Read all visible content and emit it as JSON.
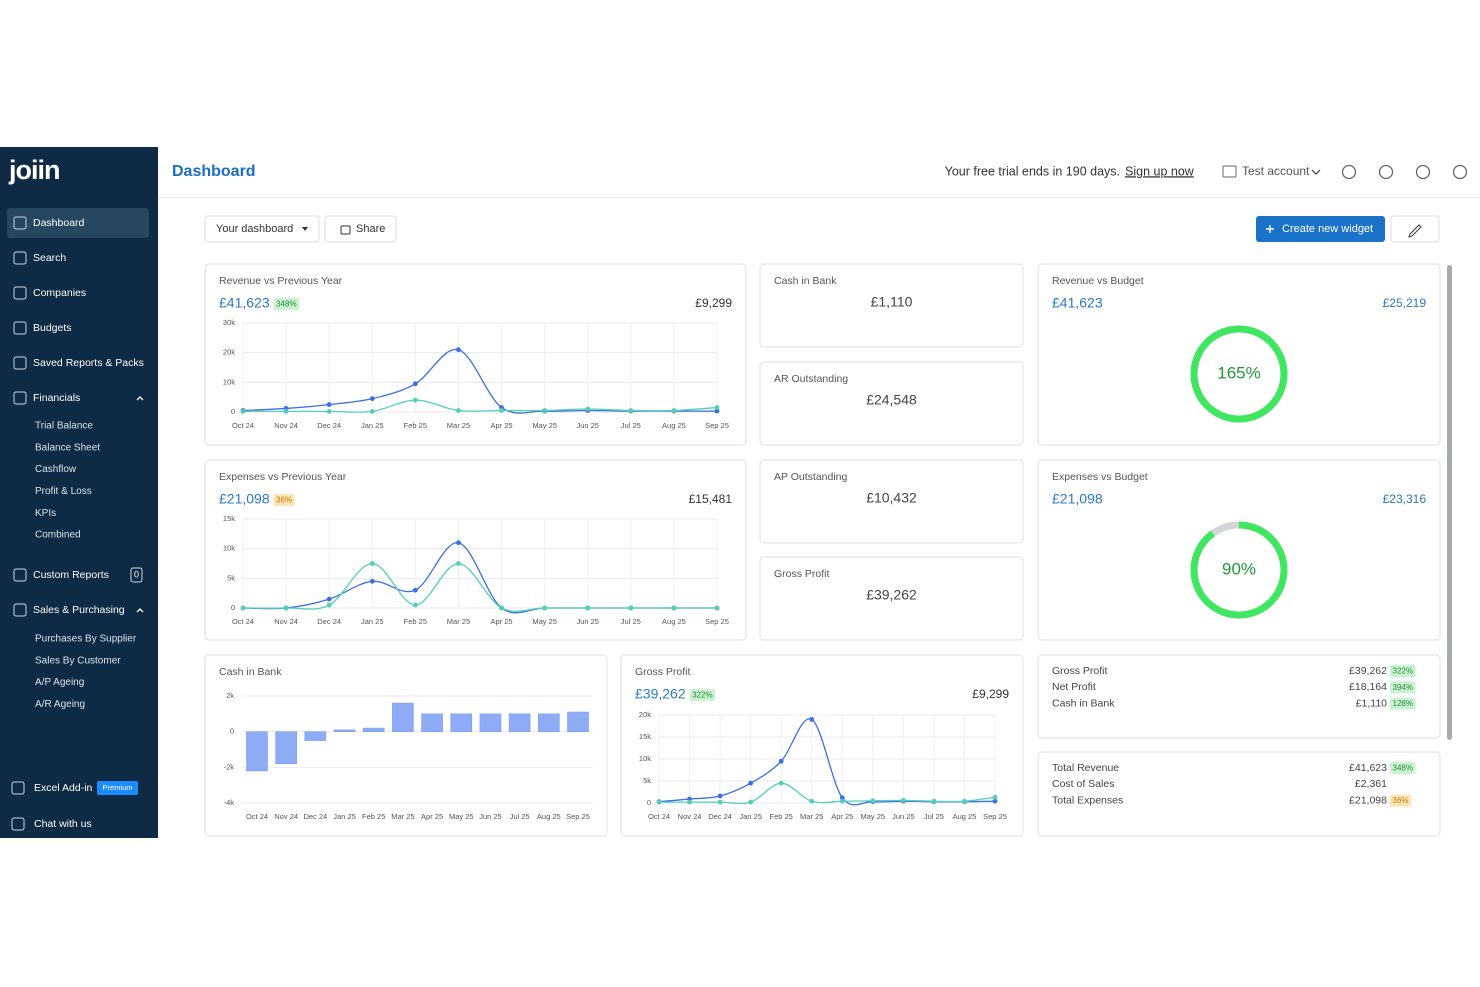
{
  "sidebar": {
    "logo": "joiin",
    "items": [
      {
        "label": "Dashboard"
      },
      {
        "label": "Search"
      },
      {
        "label": "Companies"
      },
      {
        "label": "Budgets"
      },
      {
        "label": "Saved Reports & Packs"
      },
      {
        "label": "Financials",
        "children": [
          "Trial Balance",
          "Balance Sheet",
          "Cashflow",
          "Profit & Loss",
          "KPIs",
          "Combined"
        ]
      },
      {
        "label": "Custom Reports",
        "badge": "0"
      },
      {
        "label": "Sales & Purchasing",
        "children": [
          "Purchases By Supplier",
          "Sales By Customer",
          "A/P Ageing",
          "A/R Ageing"
        ]
      }
    ],
    "footer": [
      {
        "label": "Excel Add-in",
        "badge": "Premium"
      },
      {
        "label": "Chat with us"
      }
    ]
  },
  "header": {
    "title": "Dashboard",
    "trial": "Your free trial ends in 190 days.",
    "link": "Sign up now",
    "account": "Test account"
  },
  "toolbar": {
    "dashboard": "Your dashboard",
    "share": "Share",
    "create": "Create new widget"
  },
  "widgets": {
    "revenue_vs_previous": {
      "title": "Revenue vs Previous Year",
      "value": "£41,623",
      "badge": {
        "text": "348%",
        "bg": "#c9f2d0",
        "fg": "#2a8a43"
      },
      "previous": "£9,299",
      "chart": {
        "type": "line",
        "categories": [
          "Oct 24",
          "Nov 24",
          "Dec 24",
          "Jan 25",
          "Feb 25",
          "Mar 25",
          "Apr 25",
          "May 25",
          "Jun 25",
          "Jul 25",
          "Aug 25",
          "Sep 25"
        ],
        "ylim": [
          0,
          30000
        ],
        "yticks": [
          0,
          {
            "value": 10000,
            "label": "10k"
          },
          {
            "value": 20000,
            "label": "20k"
          },
          {
            "value": 30000,
            "label": "30k"
          }
        ],
        "grid": true,
        "series": [
          {
            "color": "#3b6ee6",
            "values": [
              500,
              1200,
              2500,
              4500,
              9500,
              21000,
              1500,
              300,
              500,
              300,
              300,
              300
            ]
          },
          {
            "color": "#52cfb4",
            "values": [
              200,
              200,
              200,
              200,
              4000,
              500,
              500,
              500,
              1000,
              500,
              500,
              1500
            ]
          }
        ]
      }
    },
    "cash_in_bank": {
      "title": "Cash in Bank",
      "value": "£1,110"
    },
    "ar_outstanding": {
      "title": "AR Outstanding",
      "value": "£24,548"
    },
    "revenue_vs_budget": {
      "title": "Revenue vs Budget",
      "actual": "£41,623",
      "budget": "£25,219",
      "gauge": {
        "value": 165,
        "label": "165%",
        "color": "#3fe660",
        "track": "#d2d6db"
      }
    },
    "expenses_vs_previous": {
      "title": "Expenses vs Previous Year",
      "value": "£21,098",
      "badge": {
        "text": "36%",
        "bg": "#fde4b6",
        "fg": "#c67a00"
      },
      "previous": "£15,481",
      "chart": {
        "type": "line",
        "categories": [
          "Oct 24",
          "Nov 24",
          "Dec 24",
          "Jan 25",
          "Feb 25",
          "Mar 25",
          "Apr 25",
          "May 25",
          "Jun 25",
          "Jul 25",
          "Aug 25",
          "Sep 25"
        ],
        "ylim": [
          0,
          15000
        ],
        "yticks": [
          0,
          {
            "value": 5000,
            "label": "5k"
          },
          {
            "value": 10000,
            "label": "10k"
          },
          {
            "value": 15000,
            "label": "15k"
          }
        ],
        "grid": true,
        "series": [
          {
            "color": "#3b6ee6",
            "values": [
              0,
              0,
              1500,
              4500,
              3000,
              11000,
              0,
              0,
              0,
              0,
              0,
              0
            ]
          },
          {
            "color": "#52cfb4",
            "values": [
              0,
              0,
              500,
              7500,
              500,
              7500,
              0,
              0,
              0,
              0,
              0,
              0
            ]
          }
        ]
      }
    },
    "ap_outstanding": {
      "title": "AP Outstanding",
      "value": "£10,432"
    },
    "gross_profit_card": {
      "title": "Gross Profit",
      "value": "£39,262"
    },
    "expenses_vs_budget": {
      "title": "Expenses vs Budget",
      "actual": "£21,098",
      "budget": "£23,316",
      "gauge": {
        "value": 90,
        "label": "90%",
        "color": "#3fe660",
        "track": "#d2d6db"
      }
    },
    "cash_in_bank_chart": {
      "title": "Cash in Bank",
      "chart": {
        "type": "bar",
        "categories": [
          "Oct 24",
          "Nov 24",
          "Dec 24",
          "Jan 25",
          "Feb 25",
          "Mar 25",
          "Apr 25",
          "May 25",
          "Jun 25",
          "Jul 25",
          "Aug 25",
          "Sep 25"
        ],
        "ylim": [
          -4000,
          2000
        ],
        "yticks": [
          {
            "value": -4000,
            "label": "-4k"
          },
          {
            "value": -2000,
            "label": "-2k"
          },
          0,
          {
            "value": 2000,
            "label": "2k"
          }
        ],
        "grid": true,
        "color": "#8eabf5",
        "values": [
          -2200,
          -1800,
          -500,
          100,
          200,
          1600,
          1000,
          1000,
          1000,
          1000,
          1000,
          1100
        ]
      }
    },
    "gross_profit_chart": {
      "title": "Gross Profit",
      "value": "£39,262",
      "badge": {
        "text": "322%",
        "bg": "#c9f2d0",
        "fg": "#2a8a43"
      },
      "previous": "£9,299",
      "chart": {
        "type": "line",
        "categories": [
          "Oct 24",
          "Nov 24",
          "Dec 24",
          "Jan 25",
          "Feb 25",
          "Mar 25",
          "Apr 25",
          "May 25",
          "Jun 25",
          "Jul 25",
          "Aug 25",
          "Sep 25"
        ],
        "ylim": [
          0,
          20000
        ],
        "yticks": [
          0,
          {
            "value": 5000,
            "label": "5k"
          },
          {
            "value": 10000,
            "label": "10k"
          },
          {
            "value": 15000,
            "label": "15k"
          },
          {
            "value": 20000,
            "label": "20k"
          }
        ],
        "grid": true,
        "series": [
          {
            "color": "#3b6ee6",
            "values": [
              300,
              900,
              1600,
              4500,
              9500,
              19000,
              1200,
              300,
              400,
              300,
              300,
              400
            ]
          },
          {
            "color": "#52cfb4",
            "values": [
              200,
              200,
              200,
              200,
              4500,
              400,
              400,
              500,
              600,
              400,
              400,
              1300
            ]
          }
        ]
      }
    },
    "summary_profit": {
      "rows": [
        {
          "label": "Gross Profit",
          "value": "£39,262",
          "badge": {
            "text": "322%",
            "bg": "#c9f2d0",
            "fg": "#2a8a43"
          }
        },
        {
          "label": "Net Profit",
          "value": "£18,164",
          "badge": {
            "text": "394%",
            "bg": "#c9f2d0",
            "fg": "#2a8a43"
          }
        },
        {
          "label": "Cash in Bank",
          "value": "£1,110",
          "badge": {
            "text": "128%",
            "bg": "#c9f2d0",
            "fg": "#2a8a43"
          }
        }
      ]
    },
    "summary_totals": {
      "rows": [
        {
          "label": "Total Revenue",
          "value": "£41,623",
          "badge": {
            "text": "348%",
            "bg": "#c9f2d0",
            "fg": "#2a8a43"
          }
        },
        {
          "label": "Cost of Sales",
          "value": "£2,361"
        },
        {
          "label": "Total Expenses",
          "value": "£21,098",
          "badge": {
            "text": "36%",
            "bg": "#fde4b6",
            "fg": "#c67a00"
          }
        }
      ]
    }
  }
}
